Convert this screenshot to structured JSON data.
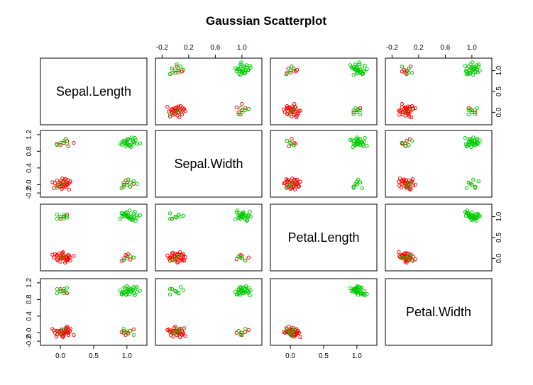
{
  "chart_data": {
    "type": "scatter",
    "title": "Gaussian Scatterplot",
    "variables": [
      "Sepal.Length",
      "Sepal.Width",
      "Petal.Length",
      "Petal.Width"
    ],
    "axis_range": [
      -0.3,
      1.3
    ],
    "axes": {
      "top": {
        "columns": [
          1,
          3
        ],
        "ticks": [
          -0.2,
          0.2,
          0.6,
          1.0
        ],
        "tick_labels": [
          "-0.2",
          "0.2",
          "0.6",
          "1.0"
        ]
      },
      "bottom": {
        "columns": [
          0,
          2
        ],
        "ticks": [
          0.0,
          0.5,
          1.0
        ],
        "tick_labels": [
          "0.0",
          "0.5",
          "1.0"
        ]
      },
      "left": {
        "rows": [
          1,
          3
        ],
        "ticks": [
          -0.2,
          0.4,
          0.8,
          1.2
        ],
        "minor_ticks": [
          0.0
        ],
        "tick_labels": [
          "-0.2",
          "0.4",
          "0.8",
          "1.2"
        ],
        "minor_tick_labels": [
          "0.0"
        ]
      },
      "right": {
        "rows": [
          0,
          2
        ],
        "ticks": [
          0.0,
          0.5,
          1.0
        ],
        "tick_labels": [
          "0.0",
          "0.5",
          "1.0"
        ]
      }
    },
    "series": [
      {
        "name": "",
        "color": "#ff0000",
        "values": [
          [
            0.05,
            0.0,
            0.0,
            0.0
          ],
          [
            0.0,
            0.05,
            0.02,
            -0.03
          ],
          [
            0.08,
            -0.05,
            0.05,
            0.02
          ],
          [
            -0.05,
            0.1,
            -0.03,
            0.05
          ],
          [
            0.12,
            0.02,
            0.08,
            -0.05
          ],
          [
            0.02,
            -0.1,
            0.0,
            0.08
          ],
          [
            -0.08,
            0.03,
            0.1,
            0.0
          ],
          [
            0.15,
            0.08,
            -0.05,
            0.1
          ],
          [
            0.03,
            0.15,
            0.03,
            -0.08
          ],
          [
            -0.02,
            -0.05,
            0.12,
            0.03
          ],
          [
            0.1,
            0.0,
            -0.02,
            0.15
          ],
          [
            0.06,
            0.12,
            0.06,
            -0.02
          ],
          [
            -0.1,
            -0.08,
            0.02,
            0.06
          ],
          [
            0.0,
            0.04,
            -0.08,
            0.0
          ],
          [
            0.09,
            -0.02,
            0.04,
            0.12
          ],
          [
            0.04,
            0.07,
            0.15,
            -0.1
          ],
          [
            -0.04,
            0.0,
            -0.05,
            0.04
          ],
          [
            0.13,
            -0.12,
            0.07,
            0.07
          ],
          [
            0.01,
            0.09,
            0.0,
            -0.04
          ],
          [
            0.07,
            0.03,
            -0.1,
            0.02
          ],
          [
            -0.12,
            0.06,
            0.09,
            0.09
          ],
          [
            0.05,
            -0.07,
            0.01,
            -0.06
          ],
          [
            0.11,
            0.11,
            -0.04,
            0.01
          ],
          [
            0.02,
            0.01,
            0.11,
            0.05
          ],
          [
            -0.06,
            -0.03,
            0.06,
            -0.09
          ],
          [
            0.08,
            0.13,
            -0.06,
            0.11
          ],
          [
            0.03,
            -0.04,
            0.13,
            0.0
          ],
          [
            0.14,
            0.05,
            0.03,
            0.04
          ],
          [
            0.05,
            1.0,
            0.0,
            0.0
          ],
          [
            0.0,
            0.95,
            0.05,
            0.05
          ],
          [
            0.1,
            1.05,
            -0.05,
            0.02
          ],
          [
            -0.05,
            0.98,
            0.08,
            -0.04
          ],
          [
            0.08,
            1.1,
            0.02,
            0.07
          ],
          [
            0.12,
            0.92,
            -0.02,
            0.0
          ],
          [
            0.2,
            1.0,
            0.06,
            -0.05
          ],
          [
            0.95,
            0.0,
            0.0,
            0.0
          ],
          [
            1.0,
            0.05,
            0.05,
            0.03
          ],
          [
            1.05,
            -0.05,
            -0.03,
            0.05
          ],
          [
            0.98,
            0.1,
            0.08,
            -0.05
          ],
          [
            1.1,
            0.02,
            0.02,
            0.08
          ],
          [
            0.92,
            -0.08,
            -0.06,
            0.02
          ],
          [
            1.02,
            0.12,
            0.1,
            -0.02
          ],
          [
            0.05,
            0.0,
            1.0,
            1.0
          ],
          [
            0.1,
            0.05,
            1.05,
            0.95
          ],
          [
            0.0,
            -0.05,
            0.95,
            1.05
          ]
        ]
      },
      {
        "name": "",
        "color": "#00cc00",
        "values": [
          [
            1.0,
            1.0,
            1.0,
            1.0
          ],
          [
            0.95,
            1.05,
            1.02,
            0.98
          ],
          [
            1.05,
            0.95,
            0.98,
            1.05
          ],
          [
            1.1,
            1.02,
            1.08,
            0.95
          ],
          [
            0.9,
            0.98,
            0.95,
            1.02
          ],
          [
            1.02,
            1.1,
            1.05,
            1.08
          ],
          [
            0.98,
            0.92,
            1.1,
            0.92
          ],
          [
            1.08,
            1.08,
            0.92,
            1.0
          ],
          [
            1.15,
            0.98,
            1.03,
            1.1
          ],
          [
            0.93,
            1.03,
            1.0,
            0.97
          ],
          [
            1.03,
            0.95,
            0.97,
            1.03
          ],
          [
            1.12,
            1.12,
            1.12,
            0.9
          ],
          [
            0.97,
            1.0,
            1.06,
            1.06
          ],
          [
            1.06,
            0.9,
            0.94,
            0.99
          ],
          [
            1.0,
            1.06,
            1.01,
            1.12
          ],
          [
            0.92,
            0.96,
            1.09,
            0.94
          ],
          [
            1.09,
            1.04,
            0.96,
            1.04
          ],
          [
            1.2,
            0.99,
            1.04,
            1.01
          ],
          [
            1.01,
            1.09,
            0.99,
            0.96
          ],
          [
            0.96,
            1.01,
            1.07,
            1.09
          ],
          [
            1.04,
            0.93,
            1.15,
            0.93
          ],
          [
            1.13,
            1.07,
            0.9,
            1.07
          ],
          [
            0.99,
            0.97,
            1.02,
            0.91
          ],
          [
            1.07,
            1.13,
            1.0,
            1.02
          ],
          [
            1.0,
            1.02,
            1.11,
            1.0
          ],
          [
            1.0,
            0.0,
            1.0,
            1.0
          ],
          [
            0.95,
            0.05,
            1.05,
            0.95
          ],
          [
            1.05,
            -0.05,
            0.95,
            1.05
          ],
          [
            1.1,
            0.08,
            1.0,
            1.1
          ],
          [
            0.92,
            -0.08,
            1.08,
            0.92
          ],
          [
            1.15,
            0.02,
            0.98,
            0.98
          ],
          [
            1.02,
            0.12,
            1.02,
            1.02
          ],
          [
            0.0,
            1.0,
            1.0,
            1.0
          ],
          [
            0.05,
            1.05,
            0.95,
            1.05
          ],
          [
            -0.05,
            0.95,
            1.05,
            0.95
          ],
          [
            0.08,
            1.1,
            1.02,
            0.98
          ],
          [
            0.1,
            0.98,
            0.98,
            1.08
          ],
          [
            0.0,
            0.0,
            1.0,
            1.0
          ],
          [
            0.05,
            0.05,
            1.05,
            0.95
          ],
          [
            -0.05,
            -0.08,
            0.95,
            1.05
          ],
          [
            1.0,
            1.0,
            0.0,
            0.0
          ],
          [
            1.05,
            0.95,
            0.05,
            0.05
          ],
          [
            0.95,
            1.05,
            -0.05,
            0.1
          ],
          [
            1.1,
            0.98,
            0.02,
            -0.05
          ],
          [
            0.0,
            0.0,
            0.0,
            0.0
          ],
          [
            0.05,
            0.05,
            0.05,
            0.08
          ],
          [
            1.0,
            0.0,
            0.0,
            0.0
          ],
          [
            1.05,
            0.05,
            0.05,
            0.05
          ],
          [
            0.95,
            -0.05,
            -0.05,
            0.05
          ]
        ]
      }
    ],
    "panel_range_x": [
      -0.3,
      1.3
    ],
    "panel_range_y": [
      -0.3,
      1.3
    ],
    "colors": {
      "red": "#ff0000",
      "green": "#00cc00"
    },
    "grid": false
  }
}
